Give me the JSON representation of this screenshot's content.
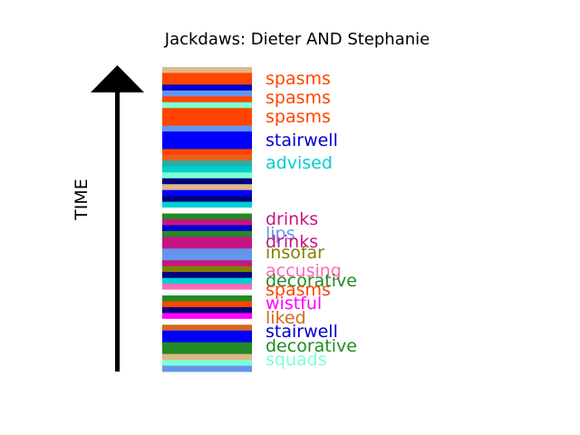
{
  "chart_data": {
    "type": "bar",
    "title": "Jackdaws: Dieter AND Stephanie",
    "ylabel": "TIME",
    "segments": [
      {
        "color": "#deb887"
      },
      {
        "color": "#ff4500"
      },
      {
        "color": "#ff4500"
      },
      {
        "color": "#0000cd"
      },
      {
        "color": "#6495ed"
      },
      {
        "color": "#ff4500"
      },
      {
        "color": "#7fffd4"
      },
      {
        "color": "#ff4500"
      },
      {
        "color": "#ff4500"
      },
      {
        "color": "#ff4500"
      },
      {
        "color": "#6495ed"
      },
      {
        "color": "#0000ff"
      },
      {
        "color": "#0000ff"
      },
      {
        "color": "#0000ff"
      },
      {
        "color": "#ff4500"
      },
      {
        "color": "#e9601e"
      },
      {
        "color": "#20b2aa"
      },
      {
        "color": "#00ced1"
      },
      {
        "color": "#7fffd4"
      },
      {
        "color": "#000080"
      },
      {
        "color": "#deb887"
      },
      {
        "color": "#0000ff"
      },
      {
        "color": "#000080"
      },
      {
        "color": "#00ced1"
      },
      {
        "color": "#ffffff"
      },
      {
        "color": "#228b22"
      },
      {
        "color": "#c71585"
      },
      {
        "color": "#0000cd"
      },
      {
        "color": "#228b22"
      },
      {
        "color": "#c71585"
      },
      {
        "color": "#c71585"
      },
      {
        "color": "#6495ed"
      },
      {
        "color": "#6495ed"
      },
      {
        "color": "#c71585"
      },
      {
        "color": "#808000"
      },
      {
        "color": "#000080"
      },
      {
        "color": "#00ced1"
      },
      {
        "color": "#ff69b4"
      },
      {
        "color": "#ffffff"
      },
      {
        "color": "#228b22"
      },
      {
        "color": "#ff4500"
      },
      {
        "color": "#000080"
      },
      {
        "color": "#ff00ff"
      },
      {
        "color": "#ffffff"
      },
      {
        "color": "#d2691e"
      },
      {
        "color": "#0000ff"
      },
      {
        "color": "#0000ff"
      },
      {
        "color": "#228b22"
      },
      {
        "color": "#228b22"
      },
      {
        "color": "#deb887"
      },
      {
        "color": "#7fffd4"
      },
      {
        "color": "#6495ed"
      }
    ],
    "labels": [
      {
        "text": "spasms",
        "color": "#ff4500"
      },
      {
        "text": "spasms",
        "color": "#ff4500"
      },
      {
        "text": "spasms",
        "color": "#ff4500"
      },
      {
        "text": "stairwell",
        "color": "#0000cd"
      },
      {
        "text": "advised",
        "color": "#00ced1"
      },
      {
        "text": "drinks",
        "color": "#c71585"
      },
      {
        "text": "lips",
        "color": "#6495ed"
      },
      {
        "text": "drinks",
        "color": "#c71585"
      },
      {
        "text": "insofar",
        "color": "#808000"
      },
      {
        "text": "accusing",
        "color": "#ff69b4"
      },
      {
        "text": "decorative",
        "color": "#228b22"
      },
      {
        "text": "spasms",
        "color": "#ff4500"
      },
      {
        "text": "wistful",
        "color": "#ff00ff"
      },
      {
        "text": "liked",
        "color": "#d2691e"
      },
      {
        "text": "stairwell",
        "color": "#0000cd"
      },
      {
        "text": "decorative",
        "color": "#228b22"
      },
      {
        "text": "squads",
        "color": "#7fffd4"
      }
    ]
  }
}
